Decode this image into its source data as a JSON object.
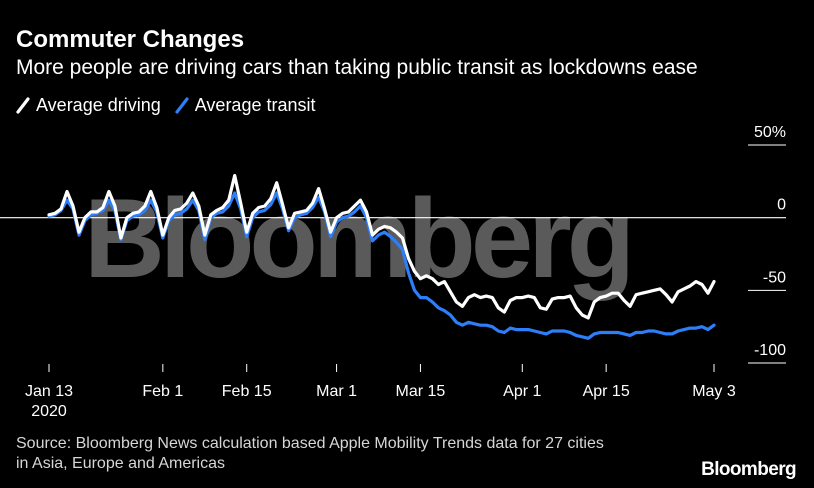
{
  "header": {
    "title": "Commuter Changes",
    "subtitle": "More people are driving cars than taking public transit as lockdowns ease"
  },
  "legend": [
    {
      "label": "Average driving",
      "color": "#ffffff"
    },
    {
      "label": "Average transit",
      "color": "#2d7ff9"
    }
  ],
  "footer": {
    "source_line1": "Source: Bloomberg News calculation based Apple Mobility Trends data for 27 cities",
    "source_line2": "in Asia, Europe and Americas",
    "brand": "Bloomberg"
  },
  "watermark": "Bloomberg",
  "colors": {
    "background": "#000000",
    "driving": "#ffffff",
    "transit": "#2d7ff9",
    "watermark": "#5a5a5a"
  },
  "chart_data": {
    "type": "line",
    "title": "Commuter Changes",
    "subtitle": "More people are driving cars than taking public transit as lockdowns ease",
    "xlabel": "",
    "ylabel": "",
    "x_range": [
      "2020-01-13",
      "2020-05-03"
    ],
    "ylim": [
      -100,
      50
    ],
    "y_unit": "%",
    "x_ticks": [
      {
        "date": "2020-01-13",
        "label": "Jan 13",
        "sublabel": "2020"
      },
      {
        "date": "2020-02-01",
        "label": "Feb 1"
      },
      {
        "date": "2020-02-15",
        "label": "Feb 15"
      },
      {
        "date": "2020-03-01",
        "label": "Mar 1"
      },
      {
        "date": "2020-03-15",
        "label": "Mar 15"
      },
      {
        "date": "2020-04-01",
        "label": "Apr 1"
      },
      {
        "date": "2020-04-15",
        "label": "Apr 15"
      },
      {
        "date": "2020-05-03",
        "label": "May 3"
      }
    ],
    "y_ticks": [
      {
        "value": 50,
        "label": "50%"
      },
      {
        "value": 0,
        "label": "0"
      },
      {
        "value": -50,
        "label": "-50"
      },
      {
        "value": -100,
        "label": "-100"
      }
    ],
    "grid": "horizontal",
    "legend_position": "top-left",
    "series": [
      {
        "name": "Average driving",
        "color": "#ffffff",
        "points": [
          [
            "2020-01-13",
            2
          ],
          [
            "2020-01-14",
            3
          ],
          [
            "2020-01-15",
            6
          ],
          [
            "2020-01-16",
            18
          ],
          [
            "2020-01-17",
            8
          ],
          [
            "2020-01-18",
            -10
          ],
          [
            "2020-01-19",
            0
          ],
          [
            "2020-01-20",
            4
          ],
          [
            "2020-01-21",
            4
          ],
          [
            "2020-01-22",
            7
          ],
          [
            "2020-01-23",
            18
          ],
          [
            "2020-01-24",
            8
          ],
          [
            "2020-01-25",
            -14
          ],
          [
            "2020-01-26",
            0
          ],
          [
            "2020-01-27",
            3
          ],
          [
            "2020-01-28",
            4
          ],
          [
            "2020-01-29",
            8
          ],
          [
            "2020-01-30",
            18
          ],
          [
            "2020-01-31",
            7
          ],
          [
            "2020-02-01",
            -12
          ],
          [
            "2020-02-02",
            0
          ],
          [
            "2020-02-03",
            5
          ],
          [
            "2020-02-04",
            6
          ],
          [
            "2020-02-05",
            10
          ],
          [
            "2020-02-06",
            17
          ],
          [
            "2020-02-07",
            8
          ],
          [
            "2020-02-08",
            -12
          ],
          [
            "2020-02-09",
            2
          ],
          [
            "2020-02-10",
            5
          ],
          [
            "2020-02-11",
            7
          ],
          [
            "2020-02-12",
            12
          ],
          [
            "2020-02-13",
            29
          ],
          [
            "2020-02-14",
            10
          ],
          [
            "2020-02-15",
            -10
          ],
          [
            "2020-02-16",
            3
          ],
          [
            "2020-02-17",
            7
          ],
          [
            "2020-02-18",
            8
          ],
          [
            "2020-02-19",
            13
          ],
          [
            "2020-02-20",
            24
          ],
          [
            "2020-02-21",
            9
          ],
          [
            "2020-02-22",
            -7
          ],
          [
            "2020-02-23",
            3
          ],
          [
            "2020-02-24",
            4
          ],
          [
            "2020-02-25",
            5
          ],
          [
            "2020-02-26",
            10
          ],
          [
            "2020-02-27",
            20
          ],
          [
            "2020-02-28",
            6
          ],
          [
            "2020-02-29",
            -10
          ],
          [
            "2020-03-01",
            0
          ],
          [
            "2020-03-02",
            3
          ],
          [
            "2020-03-03",
            4
          ],
          [
            "2020-03-04",
            8
          ],
          [
            "2020-03-05",
            12
          ],
          [
            "2020-03-06",
            4
          ],
          [
            "2020-03-07",
            -12
          ],
          [
            "2020-03-08",
            -8
          ],
          [
            "2020-03-09",
            -6
          ],
          [
            "2020-03-10",
            -7
          ],
          [
            "2020-03-11",
            -10
          ],
          [
            "2020-03-12",
            -14
          ],
          [
            "2020-03-13",
            -28
          ],
          [
            "2020-03-14",
            -37
          ],
          [
            "2020-03-15",
            -42
          ],
          [
            "2020-03-16",
            -40
          ],
          [
            "2020-03-17",
            -42
          ],
          [
            "2020-03-18",
            -46
          ],
          [
            "2020-03-19",
            -44
          ],
          [
            "2020-03-20",
            -51
          ],
          [
            "2020-03-21",
            -58
          ],
          [
            "2020-03-22",
            -61
          ],
          [
            "2020-03-23",
            -55
          ],
          [
            "2020-03-24",
            -53
          ],
          [
            "2020-03-25",
            -55
          ],
          [
            "2020-03-26",
            -54
          ],
          [
            "2020-03-27",
            -55
          ],
          [
            "2020-03-28",
            -62
          ],
          [
            "2020-03-29",
            -65
          ],
          [
            "2020-03-30",
            -57
          ],
          [
            "2020-03-31",
            -55
          ],
          [
            "2020-04-01",
            -55
          ],
          [
            "2020-04-02",
            -54
          ],
          [
            "2020-04-03",
            -55
          ],
          [
            "2020-04-04",
            -62
          ],
          [
            "2020-04-05",
            -63
          ],
          [
            "2020-04-06",
            -56
          ],
          [
            "2020-04-07",
            -55
          ],
          [
            "2020-04-08",
            -55
          ],
          [
            "2020-04-09",
            -54
          ],
          [
            "2020-04-10",
            -62
          ],
          [
            "2020-04-11",
            -67
          ],
          [
            "2020-04-12",
            -69
          ],
          [
            "2020-04-13",
            -58
          ],
          [
            "2020-04-14",
            -55
          ],
          [
            "2020-04-15",
            -54
          ],
          [
            "2020-04-16",
            -52
          ],
          [
            "2020-04-17",
            -52
          ],
          [
            "2020-04-18",
            -57
          ],
          [
            "2020-04-19",
            -61
          ],
          [
            "2020-04-20",
            -53
          ],
          [
            "2020-04-21",
            -52
          ],
          [
            "2020-04-22",
            -51
          ],
          [
            "2020-04-23",
            -50
          ],
          [
            "2020-04-24",
            -49
          ],
          [
            "2020-04-25",
            -53
          ],
          [
            "2020-04-26",
            -58
          ],
          [
            "2020-04-27",
            -51
          ],
          [
            "2020-04-28",
            -49
          ],
          [
            "2020-04-29",
            -47
          ],
          [
            "2020-04-30",
            -44
          ],
          [
            "2020-05-01",
            -46
          ],
          [
            "2020-05-02",
            -52
          ],
          [
            "2020-05-03",
            -44
          ]
        ]
      },
      {
        "name": "Average transit",
        "color": "#2d7ff9",
        "points": [
          [
            "2020-01-13",
            1
          ],
          [
            "2020-01-14",
            2
          ],
          [
            "2020-01-15",
            5
          ],
          [
            "2020-01-16",
            12
          ],
          [
            "2020-01-17",
            6
          ],
          [
            "2020-01-18",
            -12
          ],
          [
            "2020-01-19",
            -2
          ],
          [
            "2020-01-20",
            2
          ],
          [
            "2020-01-21",
            3
          ],
          [
            "2020-01-22",
            5
          ],
          [
            "2020-01-23",
            12
          ],
          [
            "2020-01-24",
            5
          ],
          [
            "2020-01-25",
            -15
          ],
          [
            "2020-01-26",
            -2
          ],
          [
            "2020-01-27",
            1
          ],
          [
            "2020-01-28",
            2
          ],
          [
            "2020-01-29",
            5
          ],
          [
            "2020-01-30",
            12
          ],
          [
            "2020-01-31",
            4
          ],
          [
            "2020-02-01",
            -14
          ],
          [
            "2020-02-02",
            -2
          ],
          [
            "2020-02-03",
            2
          ],
          [
            "2020-02-04",
            3
          ],
          [
            "2020-02-05",
            6
          ],
          [
            "2020-02-06",
            12
          ],
          [
            "2020-02-07",
            5
          ],
          [
            "2020-02-08",
            -15
          ],
          [
            "2020-02-09",
            0
          ],
          [
            "2020-02-10",
            3
          ],
          [
            "2020-02-11",
            4
          ],
          [
            "2020-02-12",
            8
          ],
          [
            "2020-02-13",
            17
          ],
          [
            "2020-02-14",
            6
          ],
          [
            "2020-02-15",
            -13
          ],
          [
            "2020-02-16",
            0
          ],
          [
            "2020-02-17",
            4
          ],
          [
            "2020-02-18",
            5
          ],
          [
            "2020-02-19",
            9
          ],
          [
            "2020-02-20",
            17
          ],
          [
            "2020-02-21",
            6
          ],
          [
            "2020-02-22",
            -9
          ],
          [
            "2020-02-23",
            0
          ],
          [
            "2020-02-24",
            2
          ],
          [
            "2020-02-25",
            3
          ],
          [
            "2020-02-26",
            7
          ],
          [
            "2020-02-27",
            14
          ],
          [
            "2020-02-28",
            4
          ],
          [
            "2020-02-29",
            -13
          ],
          [
            "2020-03-01",
            -3
          ],
          [
            "2020-03-02",
            0
          ],
          [
            "2020-03-03",
            1
          ],
          [
            "2020-03-04",
            4
          ],
          [
            "2020-03-05",
            8
          ],
          [
            "2020-03-06",
            0
          ],
          [
            "2020-03-07",
            -16
          ],
          [
            "2020-03-08",
            -12
          ],
          [
            "2020-03-09",
            -10
          ],
          [
            "2020-03-10",
            -13
          ],
          [
            "2020-03-11",
            -17
          ],
          [
            "2020-03-12",
            -22
          ],
          [
            "2020-03-13",
            -38
          ],
          [
            "2020-03-14",
            -50
          ],
          [
            "2020-03-15",
            -55
          ],
          [
            "2020-03-16",
            -55
          ],
          [
            "2020-03-17",
            -58
          ],
          [
            "2020-03-18",
            -62
          ],
          [
            "2020-03-19",
            -64
          ],
          [
            "2020-03-20",
            -67
          ],
          [
            "2020-03-21",
            -72
          ],
          [
            "2020-03-22",
            -74
          ],
          [
            "2020-03-23",
            -72
          ],
          [
            "2020-03-24",
            -73
          ],
          [
            "2020-03-25",
            -74
          ],
          [
            "2020-03-26",
            -74
          ],
          [
            "2020-03-27",
            -75
          ],
          [
            "2020-03-28",
            -78
          ],
          [
            "2020-03-29",
            -79
          ],
          [
            "2020-03-30",
            -76
          ],
          [
            "2020-03-31",
            -77
          ],
          [
            "2020-04-01",
            -77
          ],
          [
            "2020-04-02",
            -77
          ],
          [
            "2020-04-03",
            -78
          ],
          [
            "2020-04-04",
            -79
          ],
          [
            "2020-04-05",
            -80
          ],
          [
            "2020-04-06",
            -78
          ],
          [
            "2020-04-07",
            -78
          ],
          [
            "2020-04-08",
            -78
          ],
          [
            "2020-04-09",
            -79
          ],
          [
            "2020-04-10",
            -81
          ],
          [
            "2020-04-11",
            -82
          ],
          [
            "2020-04-12",
            -83
          ],
          [
            "2020-04-13",
            -80
          ],
          [
            "2020-04-14",
            -79
          ],
          [
            "2020-04-15",
            -79
          ],
          [
            "2020-04-16",
            -79
          ],
          [
            "2020-04-17",
            -79
          ],
          [
            "2020-04-18",
            -80
          ],
          [
            "2020-04-19",
            -81
          ],
          [
            "2020-04-20",
            -79
          ],
          [
            "2020-04-21",
            -79
          ],
          [
            "2020-04-22",
            -78
          ],
          [
            "2020-04-23",
            -78
          ],
          [
            "2020-04-24",
            -79
          ],
          [
            "2020-04-25",
            -80
          ],
          [
            "2020-04-26",
            -80
          ],
          [
            "2020-04-27",
            -78
          ],
          [
            "2020-04-28",
            -77
          ],
          [
            "2020-04-29",
            -76
          ],
          [
            "2020-04-30",
            -76
          ],
          [
            "2020-05-01",
            -75
          ],
          [
            "2020-05-02",
            -77
          ],
          [
            "2020-05-03",
            -74
          ]
        ]
      }
    ]
  }
}
